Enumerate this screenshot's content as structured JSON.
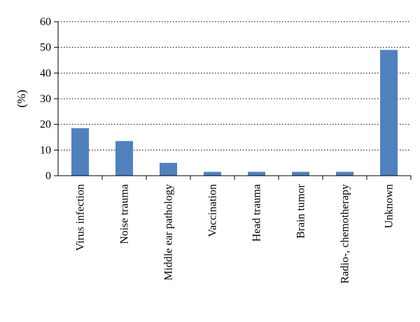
{
  "chart_data": {
    "type": "bar",
    "ylabel": "(%)",
    "xlabel": "",
    "title": "",
    "ylim": [
      0,
      60
    ],
    "yticks": [
      0,
      10,
      20,
      30,
      40,
      50,
      60
    ],
    "grid": "horizontal dashed",
    "bar_color": "#4f81bd",
    "categories": [
      "Virus infection",
      "Noise trauma",
      "Middle ear pathology",
      "Vaccination",
      "Head trauma",
      "Brain tumor",
      "Radio-, chemotherapy",
      "Unknown"
    ],
    "values": [
      18.5,
      13.5,
      5,
      1.5,
      1.5,
      1.5,
      1.5,
      49
    ]
  }
}
